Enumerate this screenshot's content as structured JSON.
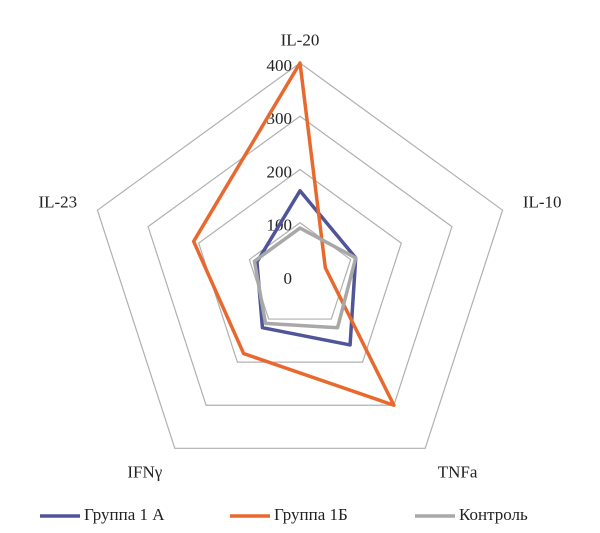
{
  "chart_data": {
    "type": "radar",
    "categories": [
      "IL-20",
      "IL-10",
      "TNFa",
      "IFNγ",
      "IL-23"
    ],
    "series": [
      {
        "name": "Группа 1 А",
        "color": "#50559a",
        "values": [
          160,
          110,
          160,
          120,
          85
        ]
      },
      {
        "name": "Группа 1Б",
        "color": "#e8682e",
        "values": [
          400,
          50,
          300,
          180,
          210
        ]
      },
      {
        "name": "Контроль",
        "color": "#a8a8a8",
        "values": [
          90,
          110,
          120,
          110,
          90
        ]
      }
    ],
    "ylim": [
      0,
      400
    ],
    "yticks": [
      0,
      100,
      200,
      300,
      400
    ],
    "grid": true,
    "legend": "bottom"
  }
}
